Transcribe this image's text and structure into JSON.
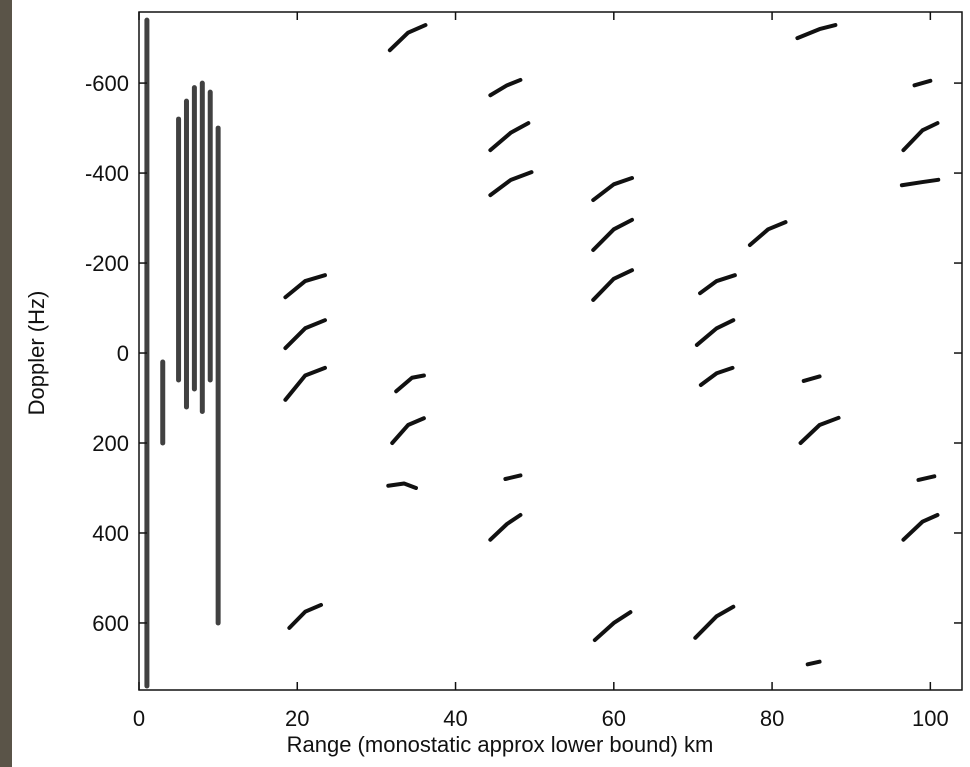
{
  "chart_data": {
    "type": "range_doppler",
    "x_label": "Range (monostatic approx lower bound) km",
    "y_label": "Doppler (Hz)",
    "xlim": [
      0,
      104
    ],
    "xticks": [
      0,
      20,
      40,
      60,
      80,
      100
    ],
    "ylim": [
      749,
      -758
    ],
    "yticks": [
      -600,
      -400,
      -200,
      0,
      200,
      400,
      600
    ],
    "color": "#111111",
    "clutter": [
      {
        "x": [
          1,
          1
        ],
        "y": [
          -740,
          740
        ]
      },
      {
        "x": [
          5,
          5
        ],
        "y": [
          -520,
          60
        ]
      },
      {
        "x": [
          6,
          6
        ],
        "y": [
          -560,
          120
        ]
      },
      {
        "x": [
          7,
          7
        ],
        "y": [
          -590,
          80
        ]
      },
      {
        "x": [
          8,
          8
        ],
        "y": [
          -600,
          130
        ]
      },
      {
        "x": [
          9,
          9
        ],
        "y": [
          -580,
          60
        ]
      },
      {
        "x": [
          10,
          10
        ],
        "y": [
          -500,
          600
        ]
      },
      {
        "x": [
          3,
          3
        ],
        "y": [
          20,
          200
        ]
      }
    ],
    "echoes": [
      {
        "x": [
          18.5,
          21,
          23.5
        ],
        "y": [
          -124,
          -160,
          -173
        ]
      },
      {
        "x": [
          18.5,
          21,
          23.5
        ],
        "y": [
          -11,
          -55,
          -73
        ]
      },
      {
        "x": [
          18.5,
          21,
          23.5
        ],
        "y": [
          104,
          50,
          33
        ]
      },
      {
        "x": [
          19,
          21,
          23
        ],
        "y": [
          611,
          575,
          560
        ]
      },
      {
        "x": [
          31.7,
          34,
          36.2
        ],
        "y": [
          -673,
          -712,
          -729
        ]
      },
      {
        "x": [
          32.5,
          34.5,
          36
        ],
        "y": [
          85,
          55,
          50
        ]
      },
      {
        "x": [
          32,
          34,
          36
        ],
        "y": [
          200,
          160,
          145
        ]
      },
      {
        "x": [
          31.5,
          33.5,
          35
        ],
        "y": [
          295,
          290,
          300
        ]
      },
      {
        "x": [
          44.4,
          46.5,
          48.2
        ],
        "y": [
          -573,
          -595,
          -607
        ]
      },
      {
        "x": [
          44.4,
          47,
          49.2
        ],
        "y": [
          -451,
          -490,
          -511
        ]
      },
      {
        "x": [
          44.4,
          47,
          49.6
        ],
        "y": [
          -351,
          -385,
          -402
        ]
      },
      {
        "x": [
          46.3,
          48.2
        ],
        "y": [
          280,
          272
        ]
      },
      {
        "x": [
          44.4,
          46.5,
          48.2
        ],
        "y": [
          415,
          380,
          360
        ]
      },
      {
        "x": [
          57.4,
          60,
          62.3
        ],
        "y": [
          -340,
          -375,
          -389
        ]
      },
      {
        "x": [
          57.4,
          60,
          62.3
        ],
        "y": [
          -229,
          -275,
          -296
        ]
      },
      {
        "x": [
          57.4,
          60,
          62.3
        ],
        "y": [
          -118,
          -165,
          -184
        ]
      },
      {
        "x": [
          57.6,
          60,
          62.1
        ],
        "y": [
          638,
          600,
          576
        ]
      },
      {
        "x": [
          70.9,
          73,
          75.3
        ],
        "y": [
          -133,
          -160,
          -173
        ]
      },
      {
        "x": [
          70.5,
          73,
          75.1
        ],
        "y": [
          -18,
          -55,
          -73
        ]
      },
      {
        "x": [
          71,
          73,
          75
        ],
        "y": [
          71,
          45,
          33
        ]
      },
      {
        "x": [
          70.3,
          73,
          75.1
        ],
        "y": [
          633,
          585,
          564
        ]
      },
      {
        "x": [
          83.2,
          86,
          88
        ],
        "y": [
          -700,
          -720,
          -729
        ]
      },
      {
        "x": [
          77.2,
          79.5,
          81.7
        ],
        "y": [
          -240,
          -275,
          -291
        ]
      },
      {
        "x": [
          83.6,
          86,
          88.4
        ],
        "y": [
          200,
          160,
          144
        ]
      },
      {
        "x": [
          84,
          86
        ],
        "y": [
          62,
          52
        ]
      },
      {
        "x": [
          84.5,
          86
        ],
        "y": [
          692,
          686
        ]
      },
      {
        "x": [
          96.6,
          99,
          100.9
        ],
        "y": [
          -451,
          -495,
          -511
        ]
      },
      {
        "x": [
          98,
          100
        ],
        "y": [
          -595,
          -605
        ]
      },
      {
        "x": [
          96.6,
          99,
          100.9
        ],
        "y": [
          415,
          375,
          360
        ]
      },
      {
        "x": [
          98.5,
          100.5
        ],
        "y": [
          282,
          274
        ]
      },
      {
        "x": [
          96.4,
          99,
          101
        ],
        "y": [
          -373,
          -380,
          -385
        ]
      }
    ]
  }
}
